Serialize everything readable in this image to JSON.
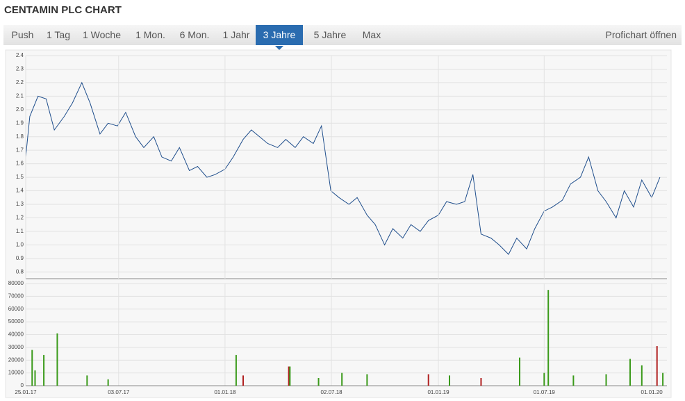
{
  "header": {
    "title": "CENTAMIN PLC CHART"
  },
  "tabs": {
    "items": [
      "Push",
      "1 Tag",
      "1 Woche",
      "1 Mon.",
      "6 Mon.",
      "1 Jahr",
      "3 Jahre",
      "5 Jahre",
      "Max"
    ],
    "active": 6,
    "right": "Profichart öffnen"
  },
  "chart_data": [
    {
      "type": "line",
      "color": "#1f4e8c",
      "grid": true,
      "xlim": [
        "25.01.17",
        "27.01.20"
      ],
      "ylim": [
        0.75,
        2.4
      ],
      "yticks": [
        0.8,
        0.9,
        {
          "value": 1,
          "label": "1.0"
        },
        1.1,
        1.2,
        1.3,
        1.4,
        1.5,
        1.6,
        1.7,
        1.8,
        1.9,
        {
          "value": 2,
          "label": "2.0"
        },
        2.1,
        2.2,
        2.3,
        2.4
      ],
      "x": [
        "25.01.17",
        "01.02.17",
        "15.02.17",
        "01.03.17",
        "15.03.17",
        "01.04.17",
        "15.04.17",
        "01.05.17",
        "15.05.17",
        "01.06.17",
        "15.06.17",
        "01.07.17",
        "15.07.17",
        "01.08.17",
        "15.08.17",
        "01.09.17",
        "15.09.17",
        "01.10.17",
        "15.10.17",
        "01.11.17",
        "15.11.17",
        "01.12.17",
        "15.12.17",
        "01.01.18",
        "15.01.18",
        "01.02.18",
        "15.02.18",
        "01.03.18",
        "15.03.18",
        "01.04.18",
        "15.04.18",
        "01.05.18",
        "15.05.18",
        "01.06.18",
        "15.06.18",
        "01.07.18",
        "15.07.18",
        "01.08.18",
        "15.08.18",
        "01.09.18",
        "15.09.18",
        "01.10.18",
        "15.10.18",
        "01.11.18",
        "15.11.18",
        "01.12.18",
        "15.12.18",
        "01.01.19",
        "15.01.19",
        "01.02.19",
        "15.02.19",
        "01.03.19",
        "15.03.19",
        "01.04.19",
        "15.04.19",
        "01.05.19",
        "15.05.19",
        "01.06.19",
        "15.06.19",
        "01.07.19",
        "15.07.19",
        "01.08.19",
        "15.08.19",
        "01.09.19",
        "15.09.19",
        "01.10.19",
        "15.10.19",
        "01.11.19",
        "15.11.19",
        "01.12.19",
        "15.12.19",
        "01.01.20",
        "15.01.20"
      ],
      "values": [
        1.65,
        1.95,
        2.1,
        2.08,
        1.85,
        1.95,
        2.05,
        2.2,
        2.05,
        1.82,
        1.9,
        1.88,
        1.98,
        1.8,
        1.72,
        1.8,
        1.65,
        1.62,
        1.72,
        1.55,
        1.58,
        1.5,
        1.52,
        1.56,
        1.65,
        1.78,
        1.85,
        1.8,
        1.75,
        1.72,
        1.78,
        1.72,
        1.8,
        1.75,
        1.88,
        1.4,
        1.35,
        1.3,
        1.35,
        1.22,
        1.15,
        1.0,
        1.12,
        1.05,
        1.15,
        1.1,
        1.18,
        1.22,
        1.32,
        1.3,
        1.32,
        1.52,
        1.08,
        1.05,
        1.0,
        0.93,
        1.05,
        0.97,
        1.12,
        1.25,
        1.28,
        1.33,
        1.45,
        1.5,
        1.65,
        1.4,
        1.32,
        1.2,
        1.4,
        1.28,
        1.48,
        1.35,
        1.5
      ]
    },
    {
      "type": "bar",
      "grid": true,
      "xlim": [
        "25.01.17",
        "27.01.20"
      ],
      "ylim": [
        0,
        80000
      ],
      "xticks": [
        "25.01.17",
        "03.07.17",
        "01.01.18",
        "02.07.18",
        "01.01.19",
        "01.07.19",
        "01.01.20"
      ],
      "yticks": [
        0,
        10000,
        20000,
        30000,
        40000,
        50000,
        60000,
        70000,
        80000
      ],
      "x": [
        "05.02.17",
        "10.02.17",
        "25.02.17",
        "20.03.17",
        "10.05.17",
        "15.06.17",
        "20.01.18",
        "01.02.18",
        "20.04.18",
        "22.04.18",
        "10.06.18",
        "20.07.18",
        "01.09.18",
        "15.12.18",
        "20.01.19",
        "15.03.19",
        "20.05.19",
        "01.07.19",
        "08.07.19",
        "20.08.19",
        "15.10.19",
        "25.11.19",
        "15.12.19",
        "10.01.20",
        "20.01.20"
      ],
      "values": [
        28000,
        12000,
        24000,
        41000,
        8000,
        5000,
        24000,
        8000,
        15000,
        15000,
        6000,
        10000,
        9000,
        9000,
        8000,
        6000,
        22000,
        10000,
        75000,
        8000,
        9000,
        21000,
        16000,
        31000,
        10000
      ],
      "colors": [
        "#3a9a1a",
        "#3a9a1a",
        "#3a9a1a",
        "#3a9a1a",
        "#3a9a1a",
        "#3a9a1a",
        "#3a9a1a",
        "#b02020",
        "#b02020",
        "#3a9a1a",
        "#3a9a1a",
        "#3a9a1a",
        "#3a9a1a",
        "#b02020",
        "#3a9a1a",
        "#b02020",
        "#3a9a1a",
        "#3a9a1a",
        "#3a9a1a",
        "#3a9a1a",
        "#3a9a1a",
        "#3a9a1a",
        "#3a9a1a",
        "#b02020",
        "#3a9a1a"
      ]
    }
  ]
}
